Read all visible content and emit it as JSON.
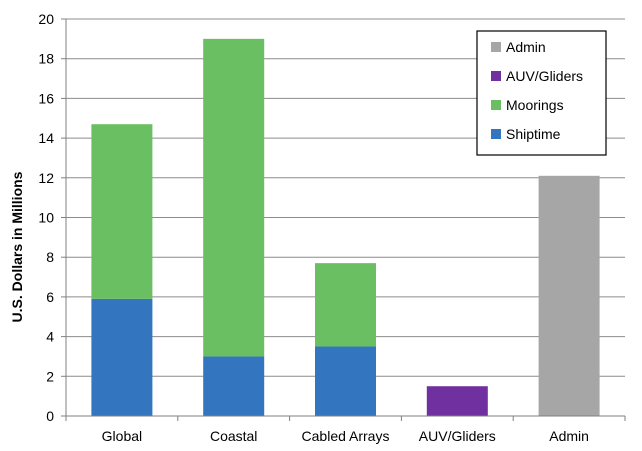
{
  "chart_data": {
    "type": "bar",
    "stacked": true,
    "title": "",
    "xlabel": "",
    "ylabel": "U.S. Dollars in Millions",
    "ylim": [
      0,
      20
    ],
    "yticks": [
      0,
      2,
      4,
      6,
      8,
      10,
      12,
      14,
      16,
      18,
      20
    ],
    "grid": true,
    "legend_position": "top-right",
    "categories": [
      "Global",
      "Coastal",
      "Cabled Arrays",
      "AUV/Gliders",
      "Admin"
    ],
    "series": [
      {
        "name": "Shiptime",
        "color": "#3375bf",
        "values": [
          5.9,
          3.0,
          3.5,
          0,
          0
        ]
      },
      {
        "name": "Moorings",
        "color": "#6abf63",
        "values": [
          8.8,
          16.0,
          4.2,
          0,
          0
        ]
      },
      {
        "name": "AUV/Gliders",
        "color": "#7030a0",
        "values": [
          0,
          0,
          0,
          1.5,
          0
        ]
      },
      {
        "name": "Admin",
        "color": "#a6a6a6",
        "values": [
          0,
          0,
          0,
          0,
          12.1
        ]
      }
    ],
    "legend_order": [
      "Admin",
      "AUV/Gliders",
      "Moorings",
      "Shiptime"
    ]
  }
}
